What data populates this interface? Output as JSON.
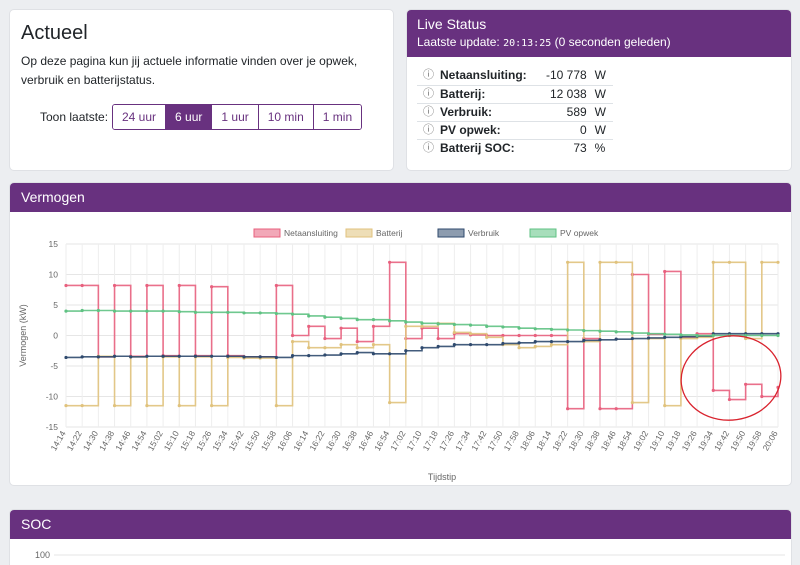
{
  "actueel": {
    "title": "Actueel",
    "description": "Op deze pagina kun jij actuele informatie vinden over je opwek, verbruik en batterijstatus.",
    "range_label": "Toon laatste:",
    "ranges": [
      "24 uur",
      "6 uur",
      "1 uur",
      "10 min",
      "1 min"
    ],
    "active_range": "6 uur"
  },
  "live": {
    "title": "Live Status",
    "update_label": "Laatste update:",
    "update_time": "20:13:25",
    "update_ago": "(0 seconden geleden)",
    "rows": [
      {
        "label": "Netaansluiting:",
        "value": "-10 778",
        "unit": "W"
      },
      {
        "label": "Batterij:",
        "value": "12 038",
        "unit": "W"
      },
      {
        "label": "Verbruik:",
        "value": "589",
        "unit": "W"
      },
      {
        "label": "PV opwek:",
        "value": "0",
        "unit": "W"
      },
      {
        "label": "Batterij SOC:",
        "value": "73",
        "unit": "%"
      }
    ]
  },
  "vermogen": {
    "title": "Vermogen"
  },
  "soc": {
    "title": "SOC",
    "top_tick": "100"
  },
  "colors": {
    "accent": "#68317f",
    "net": "#e8607e",
    "batterij": "#e0c27c",
    "verbruik": "#2f4a6e",
    "pv": "#5fc283",
    "annotation": "#d9232e"
  },
  "chart_data": {
    "type": "line",
    "title": "",
    "xlabel": "Tijdstip",
    "ylabel": "Vermogen (kW)",
    "ylim": [
      -15,
      15
    ],
    "yticks": [
      15,
      10,
      5,
      0,
      -5,
      -10,
      -15
    ],
    "legend_position": "top",
    "grid": true,
    "categories": [
      "14:14",
      "14:22",
      "14:30",
      "14:38",
      "14:46",
      "14:54",
      "15:02",
      "15:10",
      "15:18",
      "15:26",
      "15:34",
      "15:42",
      "15:50",
      "15:58",
      "16:06",
      "16:14",
      "16:22",
      "16:30",
      "16:38",
      "16:46",
      "16:54",
      "17:02",
      "17:10",
      "17:18",
      "17:26",
      "17:34",
      "17:42",
      "17:50",
      "17:58",
      "18:06",
      "18:14",
      "18:22",
      "18:30",
      "18:38",
      "18:46",
      "18:54",
      "19:02",
      "19:10",
      "19:18",
      "19:26",
      "19:34",
      "19:42",
      "19:50",
      "19:58",
      "20:06"
    ],
    "series": [
      {
        "name": "Netaansluiting",
        "color": "#e8607e",
        "values": [
          8.2,
          8.2,
          -3.5,
          8.2,
          -3.4,
          8.2,
          -3.3,
          8.2,
          -3.3,
          8.0,
          -3.3,
          -3.5,
          -3.5,
          8.2,
          0.0,
          1.5,
          -0.5,
          1.2,
          -1.0,
          1.5,
          12.0,
          -0.5,
          1.2,
          -0.5,
          0.3,
          0.1,
          0.0,
          0.0,
          0.0,
          0.0,
          0.0,
          -12.0,
          -0.5,
          -12.0,
          -12.0,
          10.0,
          0.2,
          10.5,
          -0.3,
          0.3,
          -9.0,
          -10.5,
          -8.0,
          -10.0,
          -8.5
        ]
      },
      {
        "name": "Batterij",
        "color": "#e0c27c",
        "values": [
          -11.5,
          -11.5,
          -3.4,
          -11.5,
          -3.5,
          -11.5,
          -3.5,
          -11.5,
          -3.5,
          -11.5,
          -3.6,
          -3.7,
          -3.7,
          -11.5,
          -1.0,
          -2.0,
          -2.0,
          -1.5,
          -2.0,
          -1.5,
          -11.0,
          1.5,
          1.5,
          2.0,
          0.5,
          0.3,
          -0.3,
          -1.5,
          -2.0,
          -1.8,
          -1.5,
          12.0,
          -1.0,
          12.0,
          12.0,
          -11.0,
          -0.5,
          -11.5,
          -0.5,
          -0.3,
          12.0,
          12.0,
          -0.5,
          12.0,
          12.0
        ]
      },
      {
        "name": "Verbruik",
        "color": "#2f4a6e",
        "values": [
          -3.6,
          -3.5,
          -3.5,
          -3.4,
          -3.5,
          -3.4,
          -3.4,
          -3.4,
          -3.4,
          -3.4,
          -3.4,
          -3.5,
          -3.5,
          -3.6,
          -3.3,
          -3.3,
          -3.2,
          -3.0,
          -2.8,
          -3.0,
          -3.0,
          -2.5,
          -2.0,
          -1.8,
          -1.5,
          -1.5,
          -1.5,
          -1.3,
          -1.2,
          -1.0,
          -1.0,
          -1.0,
          -0.8,
          -0.7,
          -0.6,
          -0.5,
          -0.4,
          -0.3,
          -0.2,
          -0.1,
          0.3,
          0.3,
          0.3,
          0.3,
          0.3
        ]
      },
      {
        "name": "PV opwek",
        "color": "#5fc283",
        "values": [
          4.0,
          4.1,
          4.1,
          4.0,
          4.0,
          4.0,
          4.0,
          3.9,
          3.8,
          3.8,
          3.8,
          3.7,
          3.7,
          3.6,
          3.5,
          3.2,
          3.0,
          2.8,
          2.6,
          2.6,
          2.4,
          2.2,
          2.0,
          1.9,
          1.8,
          1.7,
          1.5,
          1.4,
          1.2,
          1.1,
          1.0,
          0.9,
          0.8,
          0.7,
          0.6,
          0.4,
          0.3,
          0.2,
          0.1,
          0.0,
          0.0,
          0.0,
          0.0,
          0.0,
          0.0
        ]
      }
    ]
  }
}
